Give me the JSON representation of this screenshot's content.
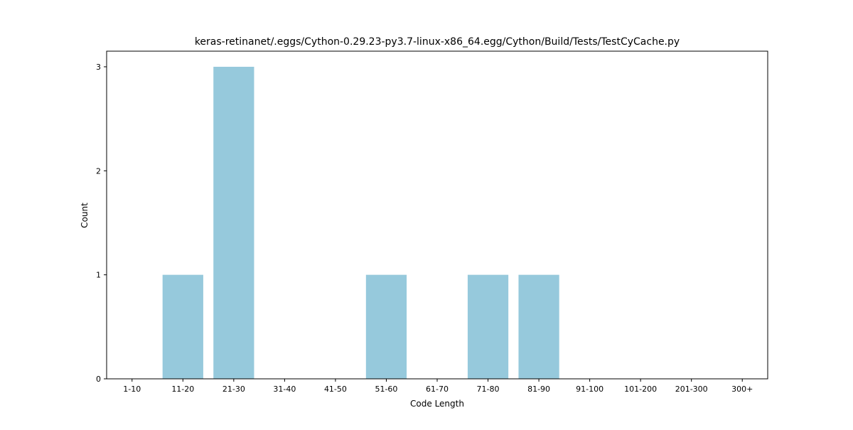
{
  "chart_data": {
    "type": "bar",
    "title": "keras-retinanet/.eggs/Cython-0.29.23-py3.7-linux-x86_64.egg/Cython/Build/Tests/TestCyCache.py",
    "xlabel": "Code Length",
    "ylabel": "Count",
    "categories": [
      "1-10",
      "11-20",
      "21-30",
      "31-40",
      "41-50",
      "51-60",
      "61-70",
      "71-80",
      "81-90",
      "91-100",
      "101-200",
      "201-300",
      "300+"
    ],
    "values": [
      0,
      1,
      3,
      0,
      0,
      1,
      0,
      1,
      1,
      0,
      0,
      0,
      0
    ],
    "ylim": [
      0,
      3.15
    ],
    "yticks": [
      0,
      1,
      2,
      3
    ],
    "bar_color": "#96c9dc",
    "grid": false,
    "legend": "none"
  }
}
